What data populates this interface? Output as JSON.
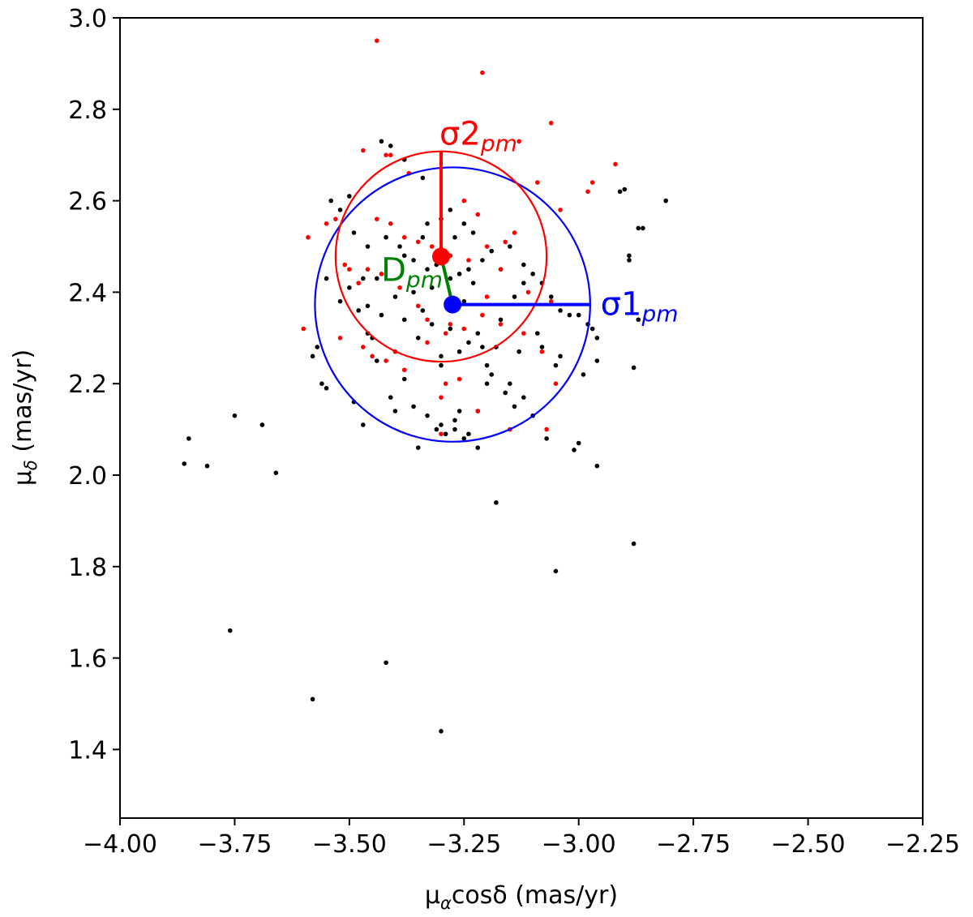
{
  "chart_data": {
    "type": "scatter",
    "xlim": [
      -4.0,
      -2.25
    ],
    "ylim": [
      1.25,
      3.0
    ],
    "xticks": [
      -4.0,
      -3.75,
      -3.5,
      -3.25,
      -3.0,
      -2.75,
      -2.5,
      -2.25
    ],
    "xtick_labels": [
      "−4.00",
      "−3.75",
      "−3.50",
      "−3.25",
      "−3.00",
      "−2.75",
      "−2.50",
      "−2.25"
    ],
    "yticks": [
      1.4,
      1.6,
      1.8,
      2.0,
      2.2,
      2.4,
      2.6,
      2.8,
      3.0
    ],
    "ytick_labels": [
      "1.4",
      "1.6",
      "1.8",
      "2.0",
      "2.2",
      "2.4",
      "2.6",
      "2.8",
      "3.0"
    ],
    "xlabel": {
      "base": "μ",
      "sub": "α",
      "rest": "cosδ (mas/yr)"
    },
    "ylabel": {
      "base": "μ",
      "sub": "δ",
      "rest": " (mas/yr)"
    },
    "grid": false,
    "colors": {
      "series_1": "#000000",
      "series_2": "#ff0000",
      "circle_1": "#0000ff",
      "circle_2": "#ff0000",
      "distance": "#008000"
    },
    "series": [
      {
        "color": "#000000",
        "x": [
          -3.86,
          -3.85,
          -3.81,
          -3.75,
          -3.69,
          -3.66,
          -3.76,
          -3.58,
          -3.42,
          -3.3,
          -3.18,
          -3.05,
          -2.88,
          -2.88,
          -2.96,
          -3.0,
          -3.01,
          -3.1,
          -3.07,
          -3.14,
          -3.2,
          -3.26,
          -3.3,
          -3.35,
          -3.4,
          -3.47,
          -3.49,
          -3.55,
          -3.56,
          -3.58,
          -3.57,
          -3.55,
          -3.54,
          -3.5,
          -3.52,
          -3.47,
          -3.46,
          -3.44,
          -3.43,
          -3.41,
          -3.38,
          -3.37,
          -3.34,
          -3.33,
          -3.3,
          -3.28,
          -3.27,
          -3.25,
          -3.23,
          -3.21,
          -3.19,
          -3.17,
          -3.15,
          -3.12,
          -3.1,
          -3.08,
          -3.06,
          -3.04,
          -3.02,
          -3.0,
          -2.98,
          -2.96,
          -2.91,
          -2.9,
          -2.89,
          -2.89,
          -2.87,
          -2.86,
          -2.81,
          -2.87,
          -2.97,
          -2.96,
          -2.99,
          -3.12,
          -3.15,
          -3.19,
          -3.22,
          -3.24,
          -3.27,
          -3.29,
          -3.31,
          -3.33,
          -3.36,
          -3.38,
          -3.41,
          -3.44,
          -3.46,
          -3.48,
          -3.5,
          -3.52,
          -3.45,
          -3.38,
          -3.32,
          -3.28,
          -3.22,
          -3.18,
          -3.13,
          -3.09,
          -3.04,
          -3.26,
          -3.24,
          -3.36,
          -3.4,
          -3.43,
          -3.3,
          -3.26,
          -3.2,
          -3.16,
          -3.22,
          -3.3,
          -3.35,
          -3.28,
          -3.24,
          -3.28,
          -3.31,
          -3.34,
          -3.23,
          -3.12,
          -3.08,
          -3.05,
          -3.14,
          -3.17,
          -3.21,
          -3.42,
          -3.39,
          -3.36,
          -3.33,
          -3.46,
          -3.49,
          -3.32,
          -3.27,
          -3.25,
          -3.38,
          -3.25,
          -3.34
        ],
        "y": [
          2.025,
          2.08,
          2.02,
          2.13,
          2.11,
          2.005,
          1.66,
          1.51,
          1.59,
          1.44,
          1.94,
          1.79,
          1.85,
          2.235,
          2.02,
          2.07,
          2.055,
          2.13,
          2.08,
          2.15,
          2.2,
          2.14,
          2.11,
          2.06,
          2.14,
          2.11,
          2.16,
          2.19,
          2.2,
          2.26,
          2.28,
          2.43,
          2.6,
          2.61,
          2.58,
          2.43,
          2.37,
          2.43,
          2.73,
          2.72,
          2.69,
          2.66,
          2.65,
          2.55,
          2.56,
          2.58,
          2.52,
          2.55,
          2.53,
          2.47,
          2.49,
          2.45,
          2.5,
          2.46,
          2.44,
          2.42,
          2.39,
          2.36,
          2.35,
          2.35,
          2.33,
          2.3,
          2.62,
          2.625,
          2.48,
          2.47,
          2.54,
          2.54,
          2.6,
          2.34,
          2.32,
          2.25,
          2.22,
          2.17,
          2.2,
          2.22,
          2.14,
          2.09,
          2.1,
          2.09,
          2.1,
          2.13,
          2.15,
          2.21,
          2.17,
          2.25,
          2.31,
          2.36,
          2.41,
          2.38,
          2.3,
          2.34,
          2.33,
          2.32,
          2.31,
          2.28,
          2.27,
          2.31,
          2.26,
          2.44,
          2.45,
          2.4,
          2.39,
          2.35,
          2.26,
          2.27,
          2.24,
          2.18,
          2.06,
          2.24,
          2.3,
          2.36,
          2.29,
          2.43,
          2.46,
          2.52,
          2.42,
          2.42,
          2.28,
          2.24,
          2.39,
          2.34,
          2.28,
          2.52,
          2.5,
          2.47,
          2.45,
          2.5,
          2.53,
          2.41,
          2.12,
          2.08,
          2.48,
          2.38,
          2.36
        ]
      },
      {
        "color": "#ff0000",
        "x": [
          -3.44,
          -3.21,
          -3.06,
          -3.13,
          -3.47,
          -3.42,
          -3.41,
          -2.92,
          -3.09,
          -3.04,
          -2.97,
          -2.98,
          -3.37,
          -3.25,
          -3.22,
          -3.14,
          -3.16,
          -3.2,
          -3.24,
          -3.28,
          -3.32,
          -3.35,
          -3.38,
          -3.41,
          -3.44,
          -3.46,
          -3.48,
          -3.51,
          -3.53,
          -3.55,
          -3.59,
          -3.6,
          -3.52,
          -3.47,
          -3.42,
          -3.38,
          -3.3,
          -3.22,
          -3.15,
          -3.07,
          -3.05,
          -3.08,
          -3.12,
          -3.17,
          -3.21,
          -3.25,
          -3.29,
          -3.33,
          -3.4,
          -3.45,
          -3.3,
          -3.29,
          -3.26,
          -3.28,
          -3.33,
          -3.35,
          -3.39,
          -3.43,
          -3.17,
          -3.11,
          -3.06,
          -3.2,
          -3.5
        ],
        "y": [
          2.95,
          2.88,
          2.77,
          2.73,
          2.71,
          2.7,
          2.7,
          2.68,
          2.64,
          2.58,
          2.64,
          2.62,
          2.66,
          2.6,
          2.57,
          2.53,
          2.51,
          2.5,
          2.47,
          2.48,
          2.5,
          2.51,
          2.52,
          2.55,
          2.56,
          2.45,
          2.42,
          2.46,
          2.56,
          2.55,
          2.52,
          2.32,
          2.3,
          2.28,
          2.25,
          2.23,
          2.17,
          2.14,
          2.1,
          2.1,
          2.2,
          2.27,
          2.31,
          2.33,
          2.35,
          2.32,
          2.31,
          2.29,
          2.27,
          2.26,
          2.09,
          2.2,
          2.21,
          2.33,
          2.34,
          2.37,
          2.41,
          2.44,
          2.45,
          2.4,
          2.38,
          2.39,
          2.45
        ]
      }
    ],
    "markers": [
      {
        "name": "center-blue",
        "x": -3.275,
        "y": 2.373,
        "color": "#0000ff"
      },
      {
        "name": "center-red",
        "x": -3.3,
        "y": 2.478,
        "color": "#ff0000"
      }
    ],
    "circles": [
      {
        "name": "circle-sigma1",
        "cx": -3.275,
        "cy": 2.373,
        "r": 0.3,
        "color": "#0000ff"
      },
      {
        "name": "circle-sigma2",
        "cx": -3.3,
        "cy": 2.478,
        "r": 0.23,
        "color": "#ff0000"
      }
    ],
    "annotations": [
      {
        "name": "sigma1-label",
        "base": "σ1",
        "sub": "pm",
        "x": -2.97,
        "y": 2.373,
        "color": "#0000ff"
      },
      {
        "name": "sigma2-label",
        "base": "σ2",
        "sub": "pm",
        "x": -3.3,
        "y": 2.708,
        "color": "#ff0000"
      },
      {
        "name": "dpm-label",
        "base": "D",
        "sub": "pm",
        "x": -3.42,
        "y": 2.425,
        "color": "#008000"
      }
    ]
  }
}
